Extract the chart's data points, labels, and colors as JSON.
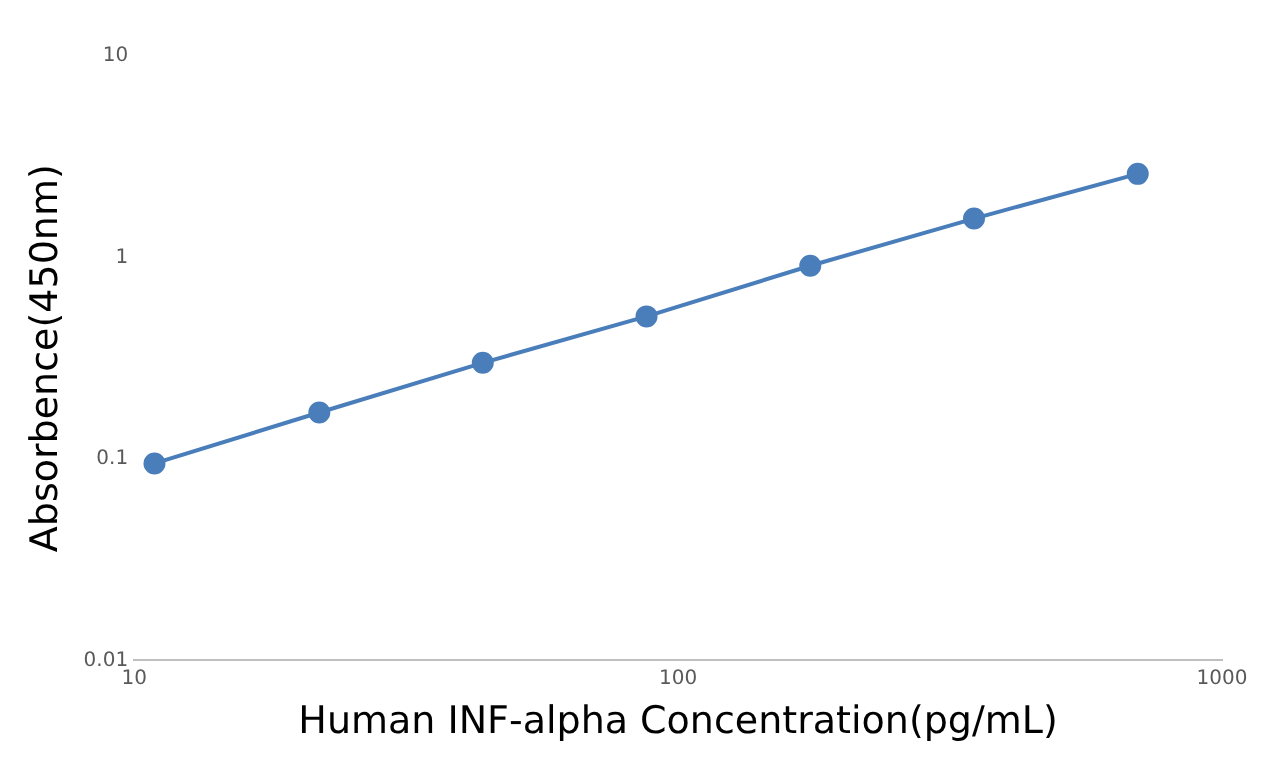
{
  "chart_data": {
    "type": "line",
    "xlabel": "Human INF-alpha Concentration(pg/mL)",
    "ylabel": "Absorbence(450nm)",
    "x": [
      10.9,
      21.9,
      43.75,
      87.5,
      175,
      350,
      700
    ],
    "series": [
      {
        "color": "#4a7ebb",
        "values": [
          0.095,
          0.17,
          0.3,
          0.51,
          0.91,
          1.56,
          2.6
        ]
      }
    ],
    "log": "xy",
    "xlim": [
      10,
      1000
    ],
    "xticks": [
      10,
      100,
      1000
    ],
    "ylim": [
      0.01,
      10
    ],
    "yticks": [
      0.01,
      0.1,
      1,
      10
    ],
    "grid": false,
    "legend": false,
    "marker": "circle",
    "line_style": "solid"
  }
}
